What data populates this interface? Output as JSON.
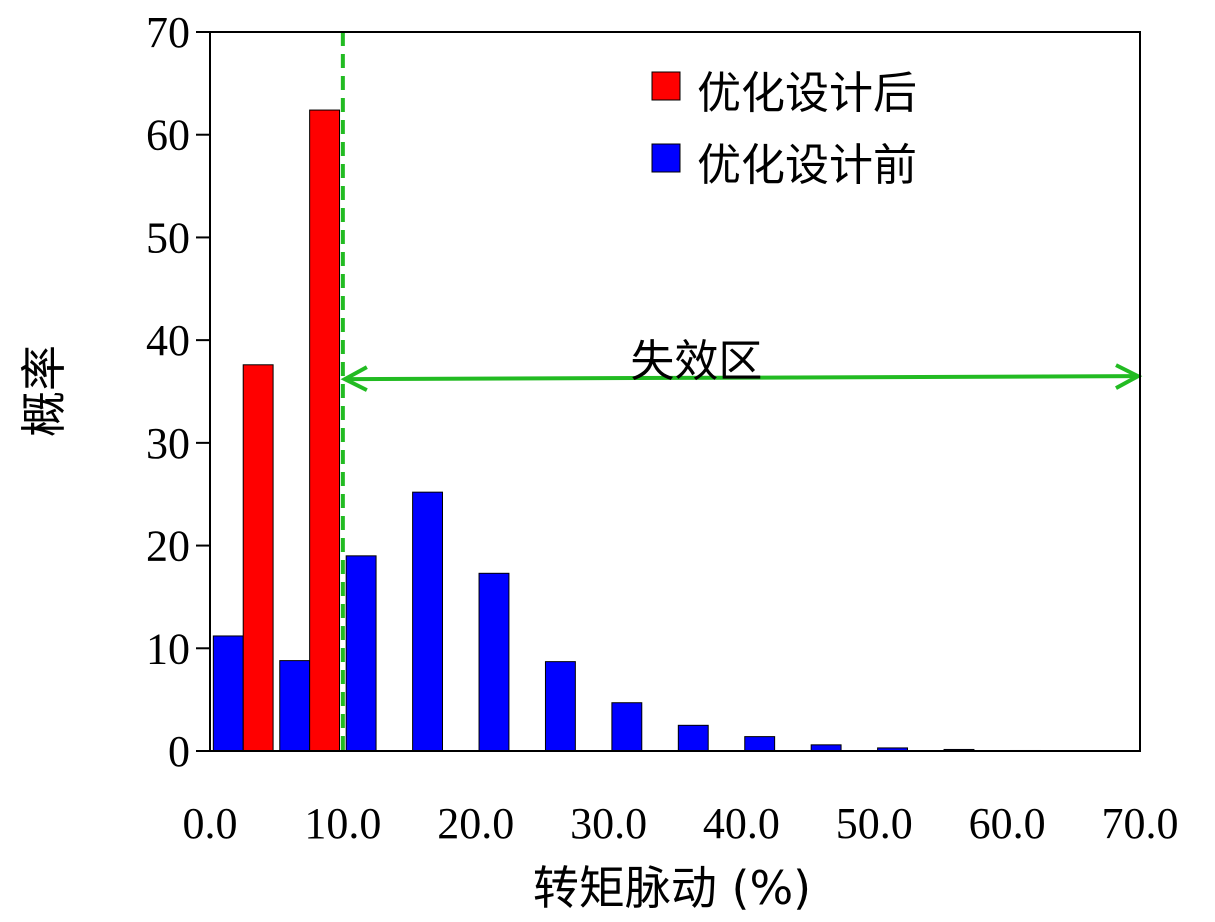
{
  "chart_data": {
    "type": "bar",
    "xlabel": "转矩脉动 (%)",
    "ylabel": "概率",
    "xlim": [
      0,
      70
    ],
    "ylim": [
      0,
      70
    ],
    "x_ticks": [
      "0.0",
      "10.0",
      "20.0",
      "30.0",
      "40.0",
      "50.0",
      "60.0",
      "70.0"
    ],
    "y_ticks": [
      "0",
      "10",
      "20",
      "30",
      "40",
      "50",
      "60",
      "70"
    ],
    "bin_width": 5,
    "grid": false,
    "legend_position": "top-right",
    "series": [
      {
        "name": "优化设计前",
        "color": "#0000ff",
        "x": [
          2.5,
          7.5,
          12.5,
          17.5,
          22.5,
          27.5,
          32.5,
          37.5,
          42.5,
          47.5,
          52.5,
          57.5,
          62.5,
          67.5
        ],
        "values": [
          11.2,
          8.8,
          19.0,
          25.2,
          17.3,
          8.7,
          4.7,
          2.5,
          1.4,
          0.6,
          0.3,
          0.15,
          0.05,
          0.02
        ]
      },
      {
        "name": "优化设计后",
        "color": "#ff0000",
        "x": [
          2.5,
          7.5
        ],
        "values": [
          37.6,
          62.4
        ]
      }
    ],
    "annotations": {
      "threshold_x": 10,
      "threshold_color": "#22bb22",
      "region_label": "失效区",
      "region_range": [
        10,
        70
      ],
      "region_arrow_y": 36.3
    }
  }
}
